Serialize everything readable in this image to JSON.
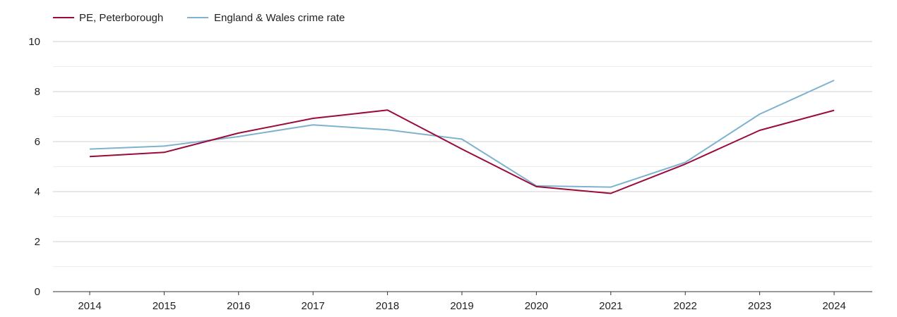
{
  "chart_data": {
    "type": "line",
    "title": "",
    "xlabel": "",
    "ylabel": "",
    "x": [
      "2014",
      "2015",
      "2016",
      "2017",
      "2018",
      "2019",
      "2020",
      "2021",
      "2022",
      "2023",
      "2024"
    ],
    "ylim": [
      0,
      10
    ],
    "yticks": [
      "0",
      "2",
      "4",
      "6",
      "8",
      "10"
    ],
    "grid": true,
    "legend_position": "top-left",
    "series": [
      {
        "name": "PE, Peterborough",
        "color": "#9b0b3a",
        "values": [
          5.4,
          5.57,
          6.34,
          6.93,
          7.26,
          5.7,
          4.2,
          3.93,
          5.1,
          6.45,
          7.25
        ]
      },
      {
        "name": "England & Wales crime rate",
        "color": "#7fb2d0",
        "values": [
          5.7,
          5.82,
          6.2,
          6.67,
          6.47,
          6.1,
          4.23,
          4.18,
          5.17,
          7.1,
          8.45
        ]
      }
    ]
  }
}
